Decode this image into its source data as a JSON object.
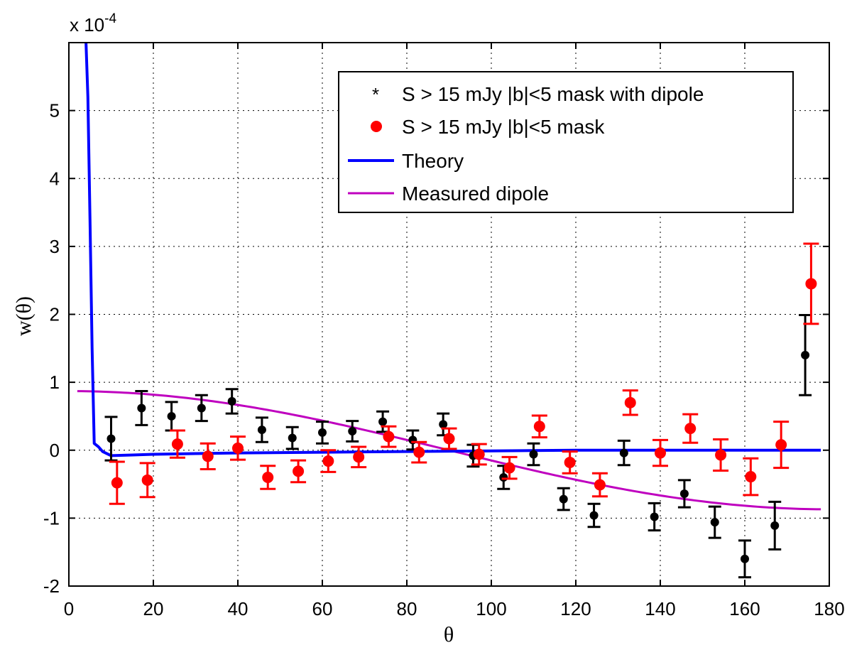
{
  "chart_data": {
    "type": "scatter",
    "title": "",
    "xlabel": "θ",
    "ylabel": "w(θ)",
    "y_exponent_label": "x 10",
    "y_exponent_power": "-4",
    "xlim": [
      0,
      180
    ],
    "ylim": [
      -2,
      6
    ],
    "xticks": [
      0,
      20,
      40,
      60,
      80,
      100,
      120,
      140,
      160,
      180
    ],
    "yticks": [
      -2,
      -1,
      0,
      1,
      2,
      3,
      4,
      5
    ],
    "grid": true,
    "legend_position": "top-right",
    "colors": {
      "black": "#000000",
      "red": "#ff0000",
      "theory": "#0000ff",
      "dipole": "#bf00bf"
    },
    "series": [
      {
        "name": "S > 15 mJy |b|<5 mask with dipole",
        "marker": "*",
        "color": "#000000",
        "x": [
          10,
          17.2,
          24.3,
          31.4,
          38.6,
          45.7,
          52.9,
          60,
          67.1,
          74.3,
          81.4,
          88.6,
          95.7,
          102.9,
          110,
          117.1,
          124.3,
          131.4,
          138.6,
          145.7,
          152.9,
          160,
          167.1,
          174.3
        ],
        "y": [
          0.17,
          0.62,
          0.5,
          0.62,
          0.72,
          0.3,
          0.18,
          0.26,
          0.28,
          0.42,
          0.15,
          0.38,
          -0.08,
          -0.4,
          -0.06,
          -0.72,
          -0.96,
          -0.04,
          -0.98,
          -0.64,
          -1.06,
          -1.6,
          -1.11,
          1.4
        ],
        "err": [
          0.32,
          0.25,
          0.21,
          0.19,
          0.18,
          0.18,
          0.16,
          0.16,
          0.15,
          0.15,
          0.14,
          0.16,
          0.16,
          0.17,
          0.16,
          0.16,
          0.17,
          0.18,
          0.2,
          0.2,
          0.23,
          0.27,
          0.35,
          0.59
        ]
      },
      {
        "name": "S > 15 mJy |b|<5 mask",
        "marker": "o",
        "color": "#ff0000",
        "x": [
          11.4,
          18.6,
          25.7,
          32.9,
          40,
          47.1,
          54.3,
          61.4,
          68.6,
          75.7,
          82.9,
          90,
          97.1,
          104.3,
          111.4,
          118.6,
          125.7,
          132.9,
          140,
          147.1,
          154.3,
          161.4,
          168.6,
          175.7
        ],
        "y": [
          -0.48,
          -0.44,
          0.09,
          -0.09,
          0.03,
          -0.4,
          -0.31,
          -0.16,
          -0.1,
          0.2,
          -0.03,
          0.17,
          -0.06,
          -0.26,
          0.35,
          -0.18,
          -0.51,
          0.7,
          -0.04,
          0.32,
          -0.07,
          -0.39,
          0.08,
          2.45
        ],
        "err": [
          0.31,
          0.25,
          0.2,
          0.19,
          0.17,
          0.17,
          0.16,
          0.16,
          0.15,
          0.15,
          0.15,
          0.15,
          0.15,
          0.16,
          0.16,
          0.16,
          0.17,
          0.18,
          0.19,
          0.21,
          0.23,
          0.27,
          0.34,
          0.59
        ]
      },
      {
        "name": "Theory",
        "marker": "line",
        "color": "#0000ff",
        "x": [
          2.5,
          3,
          3.5,
          4,
          4.5,
          5,
          5.5,
          6,
          7,
          8,
          10,
          15,
          20,
          30,
          40,
          60,
          80,
          100,
          120,
          140,
          160,
          178
        ],
        "y": [
          6.1,
          6.1,
          6.1,
          6.1,
          5.2,
          3.4,
          1.5,
          0.1,
          0.05,
          -0.02,
          -0.08,
          -0.07,
          -0.06,
          -0.05,
          -0.04,
          -0.03,
          -0.02,
          -0.01,
          0,
          0,
          0,
          0
        ]
      },
      {
        "name": "Measured dipole",
        "marker": "line",
        "color": "#bf00bf",
        "amplitude": 0.87,
        "x_range": [
          2,
          178
        ],
        "function": "A*cos(theta)"
      }
    ]
  }
}
